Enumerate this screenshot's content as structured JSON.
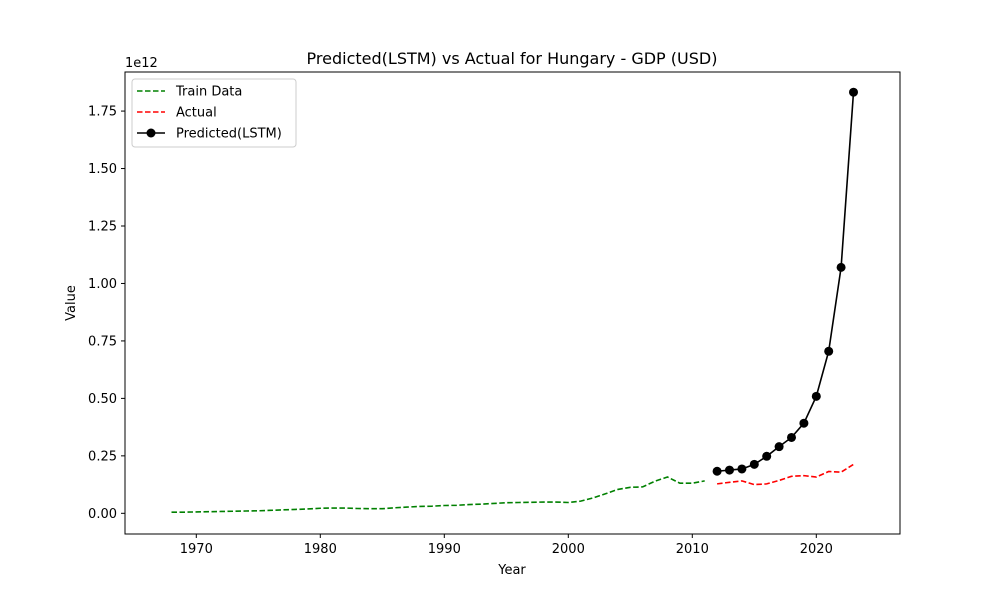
{
  "chart_data": {
    "type": "line",
    "title": "Predicted(LSTM) vs Actual for Hungary - GDP (USD)",
    "xlabel": "Year",
    "ylabel": "Value",
    "y_offset_label": "1e12",
    "xlim": [
      1964.25,
      2026.75
    ],
    "ylim": [
      -0.09,
      1.92
    ],
    "x_ticks": [
      1970,
      1980,
      1990,
      2000,
      2010,
      2020
    ],
    "x_tick_labels": [
      "1970",
      "1980",
      "1990",
      "2000",
      "2010",
      "2020"
    ],
    "y_ticks": [
      0,
      0.25,
      0.5,
      0.75,
      1.0,
      1.25,
      1.5,
      1.75
    ],
    "y_tick_labels": [
      "0.00",
      "0.25",
      "0.50",
      "0.75",
      "1.00",
      "1.25",
      "1.50",
      "1.75"
    ],
    "grid": false,
    "legend_position": "top-left",
    "y_unit_note": "values in units of 1e12 USD",
    "series": [
      {
        "name": "Train Data",
        "color": "#008000",
        "style": "dashed",
        "x": [
          1968,
          1969,
          1970,
          1971,
          1972,
          1973,
          1974,
          1975,
          1976,
          1977,
          1978,
          1979,
          1980,
          1981,
          1982,
          1983,
          1984,
          1985,
          1986,
          1987,
          1988,
          1989,
          1990,
          1991,
          1992,
          1993,
          1994,
          1995,
          1996,
          1997,
          1998,
          1999,
          2000,
          2001,
          2002,
          2003,
          2004,
          2005,
          2006,
          2007,
          2008,
          2009,
          2010,
          2011
        ],
        "y": [
          0.005,
          0.005,
          0.006,
          0.007,
          0.008,
          0.009,
          0.01,
          0.011,
          0.013,
          0.015,
          0.017,
          0.019,
          0.022,
          0.023,
          0.023,
          0.021,
          0.02,
          0.02,
          0.024,
          0.027,
          0.03,
          0.031,
          0.034,
          0.035,
          0.038,
          0.04,
          0.043,
          0.046,
          0.047,
          0.048,
          0.049,
          0.049,
          0.047,
          0.053,
          0.067,
          0.085,
          0.104,
          0.113,
          0.115,
          0.14,
          0.158,
          0.131,
          0.131,
          0.141
        ]
      },
      {
        "name": "Actual",
        "color": "#ff0000",
        "style": "dashed",
        "x": [
          2012,
          2013,
          2014,
          2015,
          2016,
          2017,
          2018,
          2019,
          2020,
          2021,
          2022,
          2023
        ],
        "y": [
          0.128,
          0.135,
          0.141,
          0.125,
          0.128,
          0.143,
          0.161,
          0.164,
          0.158,
          0.182,
          0.179,
          0.213
        ]
      },
      {
        "name": "Predicted(LSTM)",
        "color": "#000000",
        "style": "solid-marker",
        "x": [
          2012,
          2013,
          2014,
          2015,
          2016,
          2017,
          2018,
          2019,
          2020,
          2021,
          2022,
          2023
        ],
        "y": [
          0.183,
          0.188,
          0.193,
          0.213,
          0.248,
          0.29,
          0.33,
          0.392,
          0.509,
          0.705,
          1.07,
          1.832
        ]
      }
    ]
  }
}
